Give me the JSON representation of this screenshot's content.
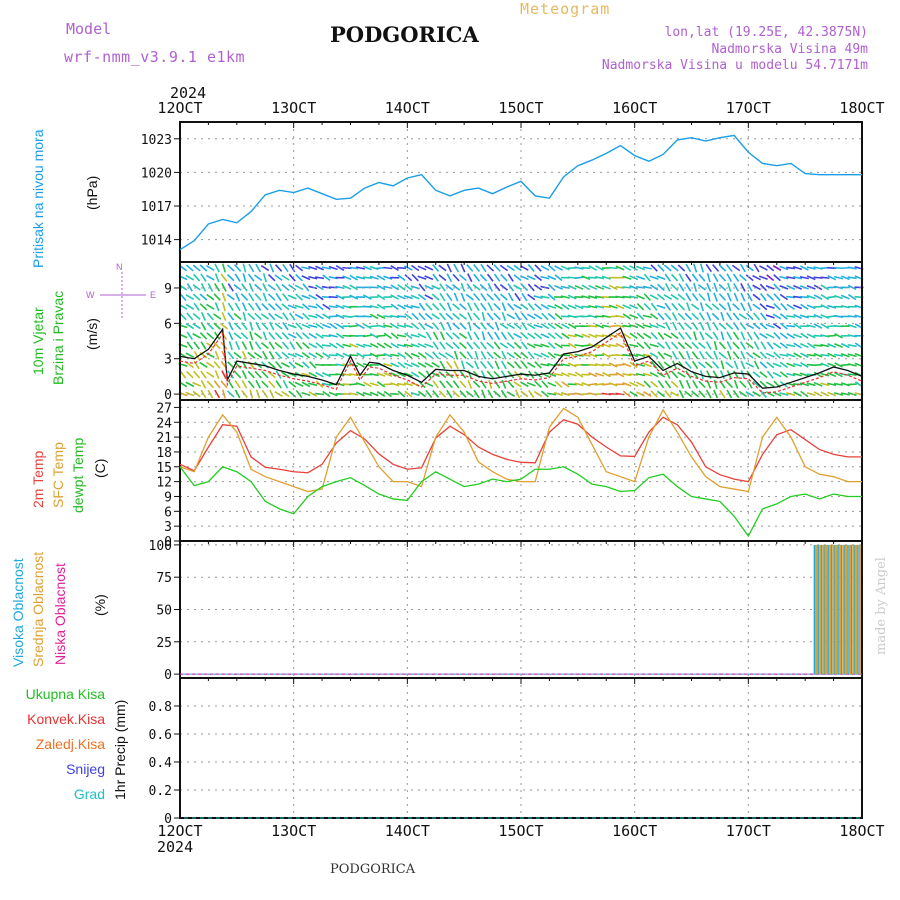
{
  "header": {
    "model_label": "Model",
    "model_name": "wrf-nmm_v3.9.1 e1km",
    "title": "PODGORICA",
    "product": "Meteogram",
    "lonlat": "lon,lat (19.25E, 42.3875N)",
    "elevation": "Nadmorska Visina 49m",
    "model_elevation": "Nadmorska Visina u modelu 54.7171m"
  },
  "footer": {
    "station": "PODGORICA",
    "credit": "made by Angel"
  },
  "time_axis": {
    "year": "2024",
    "labels": [
      "12OCT",
      "13OCT",
      "14OCT",
      "15OCT",
      "16OCT",
      "17OCT",
      "18OCT"
    ]
  },
  "colors": {
    "pressure": "#1a9ee8",
    "temp2m": "#e8403a",
    "sfc": "#e0a030",
    "dew": "#22cc22",
    "high": "#20a8e0",
    "mid": "#e0a030",
    "low": "#e0209a",
    "total": "#20c020",
    "conv": "#e83030",
    "frozen": "#f07020",
    "snow": "#4040e0",
    "hail": "#20c0c0"
  },
  "panels": {
    "pressure": {
      "ylabel_name": "Pritisak na nivou mora",
      "ylabel_unit": "(hPa)"
    },
    "wind": {
      "ylabel_name1": "10m Vjetar",
      "ylabel_name2": "Brzina i Pravac",
      "ylabel_unit": "(m/s)",
      "compass_n": "N",
      "compass_w": "W",
      "compass_e": "E"
    },
    "temperature": {
      "ylabel_2m": "2m Temp",
      "ylabel_sfc": "SFC Temp",
      "ylabel_dew": "dewpt Temp",
      "ylabel_unit": "(C)"
    },
    "clouds": {
      "ylabel_high": "Visoka Oblacnost",
      "ylabel_mid": "Srednja Oblacnost",
      "ylabel_low": "Niska Oblacnost",
      "ylabel_unit": "(%)"
    },
    "precip": {
      "labels": [
        "Ukupna Kisa",
        "Konvek.Kisa",
        "Zaledj.Kisa",
        "Snijeg",
        "Grad"
      ],
      "ylabel": "1hr Precip (mm)"
    }
  },
  "chart_data": [
    {
      "type": "line",
      "name": "pressure",
      "xlim": [
        0,
        144
      ],
      "ylim": [
        1012,
        1024.5
      ],
      "yticks": [
        1014,
        1017,
        1020,
        1023
      ],
      "x": [
        0,
        3,
        6,
        9,
        12,
        15,
        18,
        21,
        24,
        27,
        30,
        33,
        36,
        39,
        42,
        45,
        48,
        51,
        54,
        57,
        60,
        63,
        66,
        69,
        72,
        75,
        78,
        81,
        84,
        87,
        90,
        93,
        96,
        99,
        102,
        105,
        108,
        111,
        114,
        117,
        120,
        123,
        126,
        129,
        132,
        135,
        138,
        141,
        144
      ],
      "series": [
        {
          "name": "",
          "values": [
            1013.1,
            1013.9,
            1015.4,
            1015.8,
            1015.5,
            1016.5,
            1018.0,
            1018.4,
            1018.2,
            1018.6,
            1018.1,
            1017.6,
            1017.7,
            1018.6,
            1019.1,
            1018.8,
            1019.5,
            1019.8,
            1018.4,
            1017.9,
            1018.4,
            1018.6,
            1018.1,
            1018.7,
            1019.2,
            1017.9,
            1017.7,
            1019.6,
            1020.6,
            1021.1,
            1021.7,
            1022.4,
            1021.5,
            1021.0,
            1021.6,
            1022.9,
            1023.1,
            1022.8,
            1023.1,
            1023.3,
            1021.8,
            1020.8,
            1020.6,
            1020.8,
            1019.9,
            1019.8,
            1019.8,
            1019.8,
            1019.8
          ]
        }
      ]
    },
    {
      "type": "line",
      "name": "wind",
      "xlim": [
        0,
        144
      ],
      "ylim": [
        -0.5,
        11.2
      ],
      "yticks": [
        0,
        3,
        6,
        9
      ],
      "x": [
        0,
        3,
        6,
        9,
        10,
        12,
        15,
        18,
        21,
        24,
        27,
        30,
        33,
        36,
        38,
        40,
        42,
        45,
        48,
        51,
        54,
        57,
        60,
        63,
        66,
        69,
        72,
        75,
        78,
        81,
        84,
        87,
        90,
        93,
        96,
        99,
        102,
        105,
        108,
        111,
        114,
        117,
        120,
        123,
        126,
        129,
        132,
        135,
        138,
        141,
        144
      ],
      "series": [
        {
          "name": "",
          "values": [
            3.2,
            3.0,
            3.8,
            5.5,
            1.2,
            2.8,
            2.6,
            2.4,
            2.0,
            1.7,
            1.5,
            1.2,
            0.8,
            3.2,
            1.6,
            2.7,
            2.6,
            2.0,
            1.6,
            1.0,
            2.1,
            2.0,
            2.0,
            1.5,
            1.3,
            1.5,
            1.7,
            1.6,
            1.8,
            3.4,
            3.6,
            4.0,
            4.8,
            5.6,
            2.8,
            3.2,
            2.0,
            2.6,
            1.9,
            1.5,
            1.4,
            1.8,
            1.7,
            0.5,
            0.6,
            1.0,
            1.4,
            1.8,
            2.3,
            2.0,
            1.5
          ]
        }
      ]
    },
    {
      "type": "line",
      "name": "temperature",
      "xlim": [
        0,
        144
      ],
      "ylim": [
        0,
        28.5
      ],
      "yticks": [
        0,
        3,
        6,
        9,
        12,
        15,
        18,
        21,
        24,
        27
      ],
      "x": [
        0,
        3,
        6,
        9,
        12,
        15,
        18,
        21,
        24,
        27,
        30,
        33,
        36,
        39,
        42,
        45,
        48,
        51,
        54,
        57,
        60,
        63,
        66,
        69,
        72,
        75,
        78,
        81,
        84,
        87,
        90,
        93,
        96,
        99,
        102,
        105,
        108,
        111,
        114,
        117,
        120,
        123,
        126,
        129,
        132,
        135,
        138,
        141,
        144
      ],
      "series": [
        {
          "name": "2m Temp",
          "values": [
            15.5,
            14.2,
            19.0,
            23.5,
            23.2,
            17.0,
            14.9,
            14.5,
            14.0,
            13.8,
            15.5,
            19.8,
            22.3,
            20.6,
            17.6,
            15.5,
            14.5,
            14.8,
            20.8,
            23.2,
            21.5,
            19.0,
            17.5,
            16.5,
            15.9,
            15.8,
            22.0,
            24.5,
            23.6,
            21.0,
            19.0,
            17.2,
            17.1,
            22.0,
            25.0,
            23.5,
            20.0,
            15.0,
            13.4,
            12.5,
            12.0,
            17.5,
            21.5,
            22.5,
            20.5,
            18.5,
            17.5,
            17.0,
            17.0
          ]
        },
        {
          "name": "SFC Temp",
          "values": [
            15.0,
            14.0,
            21.0,
            25.5,
            22.0,
            14.5,
            13.0,
            12.0,
            11.0,
            10.0,
            10.5,
            21.0,
            25.0,
            20.0,
            15.0,
            12.0,
            12.0,
            11.0,
            21.0,
            25.5,
            22.0,
            16.0,
            14.0,
            12.5,
            12.0,
            12.0,
            23.0,
            26.8,
            25.0,
            19.5,
            14.0,
            13.0,
            12.0,
            21.0,
            26.5,
            22.0,
            17.0,
            13.0,
            11.0,
            10.5,
            10.0,
            21.0,
            25.0,
            21.0,
            15.0,
            13.5,
            13.0,
            12.0,
            12.0
          ]
        },
        {
          "name": "dewpt Temp",
          "values": [
            15.0,
            11.2,
            12.0,
            15.0,
            14.0,
            12.0,
            8.0,
            6.5,
            5.5,
            9.0,
            11.0,
            12.0,
            12.8,
            11.2,
            9.5,
            8.5,
            8.2,
            12.0,
            14.0,
            12.5,
            11.0,
            11.5,
            12.5,
            12.0,
            12.5,
            14.5,
            14.5,
            15.0,
            13.5,
            11.5,
            11.0,
            10.0,
            10.2,
            12.8,
            13.5,
            11.0,
            9.0,
            8.5,
            8.0,
            5.0,
            1.0,
            6.5,
            7.5,
            9.0,
            9.5,
            8.5,
            9.5,
            9.0,
            9.0
          ]
        }
      ]
    },
    {
      "type": "bar",
      "name": "clouds",
      "xlim": [
        0,
        144
      ],
      "ylim": [
        -3,
        103
      ],
      "yticks": [
        0,
        25,
        50,
        75,
        100
      ],
      "x": [
        134,
        134.7,
        135.4,
        136.1,
        136.8,
        137.5,
        138.2,
        138.9,
        139.6,
        140.3,
        141,
        141.7,
        142.4,
        143.1
      ],
      "series": [
        {
          "name": "Visoka Oblacnost",
          "values": [
            100,
            100,
            100,
            100,
            100,
            100,
            100,
            100,
            100,
            100,
            100,
            100,
            100,
            100
          ]
        },
        {
          "name": "Srednja Oblacnost",
          "values": [
            100,
            100,
            100,
            100,
            100,
            100,
            100,
            100,
            100,
            100,
            100,
            100,
            100,
            100
          ]
        },
        {
          "name": "Niska Oblacnost",
          "values": [
            0,
            0,
            0,
            0,
            0,
            0,
            0,
            0,
            0,
            0,
            0,
            0,
            0,
            0
          ]
        }
      ]
    },
    {
      "type": "line",
      "name": "precip",
      "xlim": [
        0,
        144
      ],
      "ylim": [
        0,
        1.0
      ],
      "yticks": [
        0,
        0.2,
        0.4,
        0.6,
        0.8
      ],
      "ytick_labels": [
        "0",
        "0.2",
        "0.4",
        "0.6",
        "0.8"
      ],
      "x": [
        0,
        144
      ],
      "series": [
        {
          "name": "Ukupna Kisa",
          "values": [
            0,
            0
          ]
        },
        {
          "name": "Konvek.Kisa",
          "values": [
            0,
            0
          ]
        },
        {
          "name": "Zaledj.Kisa",
          "values": [
            0,
            0
          ]
        },
        {
          "name": "Snijeg",
          "values": [
            0,
            0
          ]
        },
        {
          "name": "Grad",
          "values": [
            0,
            0
          ]
        }
      ]
    }
  ]
}
